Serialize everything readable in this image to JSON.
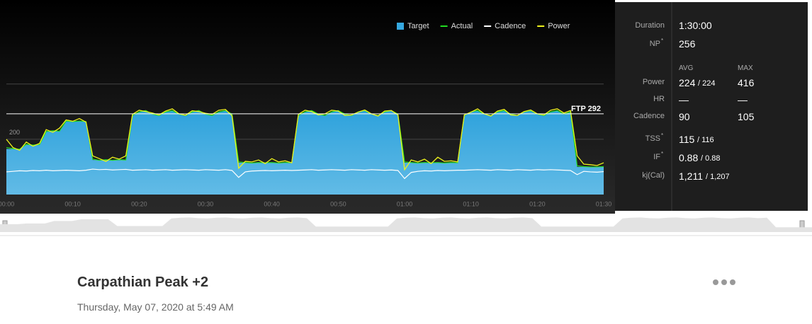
{
  "chart_data": {
    "type": "workout",
    "legend": [
      "Target",
      "Actual",
      "Cadence",
      "Power"
    ],
    "x": [
      0,
      1,
      2,
      3,
      4,
      5,
      6,
      7,
      8,
      9,
      10,
      11,
      12,
      13,
      14,
      15,
      16,
      17,
      18,
      19,
      20,
      21,
      22,
      23,
      24,
      25,
      26,
      27,
      28,
      29,
      30,
      31,
      32,
      33,
      34,
      35,
      36,
      37,
      38,
      39,
      40,
      41,
      42,
      43,
      44,
      45,
      46,
      47,
      48,
      49,
      50,
      51,
      52,
      53,
      54,
      55,
      56,
      57,
      58,
      59,
      60,
      61,
      62,
      63,
      64,
      65,
      66,
      67,
      68,
      69,
      70,
      71,
      72,
      73,
      74,
      75,
      76,
      77,
      78,
      79,
      80,
      81,
      82,
      83,
      84,
      85,
      86,
      87,
      88,
      89,
      90
    ],
    "series": [
      {
        "name": "Target",
        "color": "#35a8e0",
        "values": [
          165,
          165,
          165,
          180,
          180,
          180,
          230,
          230,
          230,
          265,
          265,
          265,
          265,
          125,
          125,
          125,
          125,
          125,
          125,
          285,
          300,
          305,
          290,
          285,
          300,
          305,
          290,
          285,
          300,
          305,
          290,
          285,
          300,
          305,
          290,
          115,
          115,
          115,
          115,
          115,
          115,
          115,
          115,
          115,
          285,
          300,
          305,
          290,
          285,
          300,
          305,
          290,
          285,
          300,
          305,
          290,
          285,
          300,
          305,
          290,
          115,
          115,
          115,
          115,
          115,
          115,
          115,
          115,
          115,
          285,
          300,
          305,
          290,
          285,
          300,
          305,
          290,
          285,
          300,
          305,
          290,
          285,
          300,
          305,
          290,
          300,
          100,
          100,
          100,
          100,
          100
        ]
      },
      {
        "name": "Actual",
        "color": "#22dd22",
        "values": [
          170,
          166,
          164,
          182,
          179,
          181,
          228,
          231,
          229,
          266,
          264,
          266,
          264,
          128,
          124,
          126,
          124,
          126,
          125,
          286,
          299,
          304,
          291,
          286,
          299,
          304,
          291,
          286,
          299,
          304,
          291,
          286,
          299,
          304,
          291,
          118,
          116,
          114,
          116,
          115,
          116,
          114,
          116,
          115,
          286,
          299,
          304,
          291,
          286,
          299,
          304,
          291,
          286,
          299,
          304,
          291,
          286,
          299,
          304,
          291,
          118,
          116,
          114,
          116,
          115,
          116,
          114,
          116,
          115,
          286,
          299,
          304,
          291,
          286,
          299,
          304,
          291,
          286,
          299,
          304,
          291,
          286,
          299,
          304,
          291,
          299,
          104,
          101,
          100,
          100,
          101
        ]
      },
      {
        "name": "Cadence",
        "color": "#ffffff",
        "values": [
          82,
          84,
          86,
          85,
          87,
          86,
          88,
          86,
          87,
          88,
          87,
          86,
          88,
          92,
          90,
          91,
          89,
          90,
          91,
          88,
          89,
          90,
          88,
          89,
          90,
          88,
          89,
          90,
          89,
          88,
          90,
          89,
          88,
          90,
          87,
          62,
          82,
          85,
          86,
          87,
          86,
          87,
          88,
          87,
          88,
          89,
          90,
          88,
          89,
          90,
          89,
          88,
          90,
          89,
          88,
          90,
          89,
          88,
          89,
          87,
          58,
          80,
          84,
          86,
          85,
          87,
          86,
          87,
          88,
          88,
          89,
          90,
          89,
          88,
          90,
          89,
          88,
          90,
          89,
          88,
          90,
          89,
          90,
          89,
          88,
          87,
          72,
          84,
          82,
          81,
          83
        ]
      },
      {
        "name": "Power",
        "color": "#eef21c",
        "values": [
          200,
          170,
          160,
          190,
          175,
          185,
          235,
          225,
          240,
          270,
          265,
          275,
          262,
          140,
          130,
          120,
          135,
          128,
          140,
          290,
          305,
          300,
          295,
          288,
          302,
          310,
          292,
          287,
          303,
          300,
          294,
          290,
          305,
          308,
          285,
          95,
          120,
          118,
          125,
          112,
          130,
          118,
          122,
          115,
          290,
          305,
          300,
          288,
          292,
          305,
          302,
          286,
          288,
          298,
          306,
          292,
          284,
          302,
          304,
          288,
          90,
          125,
          118,
          128,
          112,
          135,
          120,
          122,
          118,
          288,
          298,
          310,
          292,
          284,
          302,
          308,
          288,
          286,
          300,
          306,
          292,
          288,
          305,
          310,
          295,
          304,
          140,
          110,
          108,
          105,
          115
        ]
      }
    ],
    "xlim": [
      0,
      90
    ],
    "xticks": [
      {
        "value": 0,
        "label": "00:00"
      },
      {
        "value": 10,
        "label": "00:10"
      },
      {
        "value": 20,
        "label": "00:20"
      },
      {
        "value": 30,
        "label": "00:30"
      },
      {
        "value": 40,
        "label": "00:40"
      },
      {
        "value": 50,
        "label": "00:50"
      },
      {
        "value": 60,
        "label": "01:00"
      },
      {
        "value": 70,
        "label": "01:10"
      },
      {
        "value": 80,
        "label": "01:20"
      },
      {
        "value": 90,
        "label": "01:30"
      }
    ],
    "ylim": [
      0,
      650
    ],
    "yticks": [
      200
    ],
    "ygrid": [
      200,
      400
    ],
    "ftp": {
      "value": 292,
      "label": "FTP 292"
    }
  },
  "stats": {
    "duration": {
      "label": "Duration",
      "value": "1:30:00"
    },
    "np": {
      "label": "NP",
      "mark": "*",
      "value": "256"
    },
    "headers": {
      "avg": "AVG",
      "max": "MAX"
    },
    "rows": [
      {
        "label": "Power",
        "avg": "224",
        "target": "/ 224",
        "max": "416"
      },
      {
        "label": "HR",
        "avg": "—",
        "max": "—"
      },
      {
        "label": "Cadence",
        "avg": "90",
        "max": "105"
      }
    ],
    "scores": [
      {
        "label": "TSS",
        "mark": "*",
        "value": "115",
        "target": "/ 116"
      },
      {
        "label": "IF",
        "mark": "*",
        "value": "0.88",
        "target": "/ 0.88"
      },
      {
        "label": "kj(Cal)",
        "value": "1,211",
        "target": "/ 1,207"
      }
    ]
  },
  "workout": {
    "title": "Carpathian Peak +2",
    "date": "Thursday, May 07, 2020 at 5:49 AM"
  }
}
